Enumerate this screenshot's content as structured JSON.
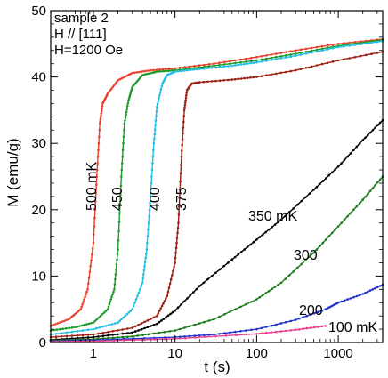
{
  "chart_data": {
    "type": "line",
    "title": "",
    "xlabel": "t (s)",
    "ylabel": "M (emu/g)",
    "xscale": "log",
    "xlim": [
      0.3,
      3500
    ],
    "ylim": [
      0,
      50
    ],
    "xticks": [
      1,
      10,
      100,
      1000
    ],
    "xtick_labels": [
      "1",
      "10",
      "100",
      "1000"
    ],
    "yticks": [
      0,
      10,
      20,
      30,
      40,
      50
    ],
    "ytick_labels": [
      "0",
      "10",
      "20",
      "30",
      "40",
      "50"
    ],
    "grid": false,
    "annotations": [
      "sample 2",
      "H // [111]",
      "H=1200 Oe"
    ],
    "series": [
      {
        "name": "500 mK",
        "color": "#e8412c",
        "x": [
          0.3,
          0.5,
          0.7,
          0.85,
          1.0,
          1.1,
          1.2,
          1.3,
          1.5,
          2,
          3,
          5,
          10,
          30,
          100,
          300,
          1000,
          3500
        ],
        "y": [
          2.5,
          3.5,
          5,
          8,
          15,
          25,
          33,
          36,
          37.5,
          39.5,
          40.6,
          41,
          41.3,
          42,
          43,
          44,
          45,
          45.7
        ]
      },
      {
        "name": "450",
        "color": "#1e9a2c",
        "x": [
          0.3,
          0.6,
          1,
          1.5,
          1.8,
          2.0,
          2.2,
          2.4,
          2.7,
          3,
          4,
          6,
          10,
          30,
          100,
          300,
          1000,
          3500
        ],
        "y": [
          1.8,
          2.3,
          3,
          5,
          8,
          14,
          25,
          33,
          36.5,
          38.5,
          40.3,
          40.8,
          41,
          41.7,
          42.5,
          43.5,
          44.7,
          45.6
        ]
      },
      {
        "name": "400",
        "color": "#22c0e8",
        "x": [
          0.3,
          1,
          2,
          3,
          4,
          4.5,
          5,
          5.5,
          6,
          7,
          8,
          10,
          20,
          50,
          100,
          300,
          1000,
          3500
        ],
        "y": [
          1.2,
          2,
          3,
          5,
          9,
          14,
          22,
          30,
          35.5,
          39,
          40.3,
          40.8,
          41.2,
          41.7,
          42.2,
          43.2,
          44.5,
          45.4
        ]
      },
      {
        "name": "375",
        "color": "#9b2212",
        "x": [
          0.3,
          1,
          3,
          6,
          8,
          10,
          11,
          12,
          13,
          14,
          16,
          20,
          50,
          100,
          300,
          1000,
          3500
        ],
        "y": [
          0.8,
          1.2,
          2.2,
          4,
          7,
          12,
          18,
          28,
          35,
          38,
          39,
          39.2,
          39.6,
          40,
          41,
          42.5,
          43.8
        ]
      },
      {
        "name": "350 mK",
        "color": "#000000",
        "x": [
          0.3,
          1,
          3,
          6,
          10,
          20,
          50,
          100,
          200,
          500,
          1000,
          2000,
          3500
        ],
        "y": [
          0.4,
          0.8,
          1.5,
          2.8,
          4.8,
          8.5,
          12.5,
          15.5,
          18.5,
          23,
          26.5,
          30.5,
          33.5
        ]
      },
      {
        "name": "300",
        "color": "#1a7a1a",
        "x": [
          0.3,
          1,
          3,
          10,
          30,
          100,
          200,
          500,
          1000,
          2000,
          3500
        ],
        "y": [
          0.3,
          0.5,
          0.9,
          1.8,
          3.5,
          6.5,
          9,
          13.5,
          17.5,
          21.5,
          25
        ]
      },
      {
        "name": "200",
        "color": "#2233cc",
        "x": [
          0.3,
          1,
          10,
          30,
          100,
          300,
          700,
          1000,
          2000,
          3500
        ],
        "y": [
          0.2,
          0.35,
          0.8,
          1.2,
          2,
          3.4,
          5,
          6,
          7.3,
          8.7
        ]
      },
      {
        "name": "100 mK",
        "color": "#e8408c",
        "x": [
          0.3,
          1,
          10,
          100,
          300,
          700
        ],
        "y": [
          0.1,
          0.2,
          0.55,
          1.3,
          1.9,
          2.5
        ]
      }
    ]
  }
}
